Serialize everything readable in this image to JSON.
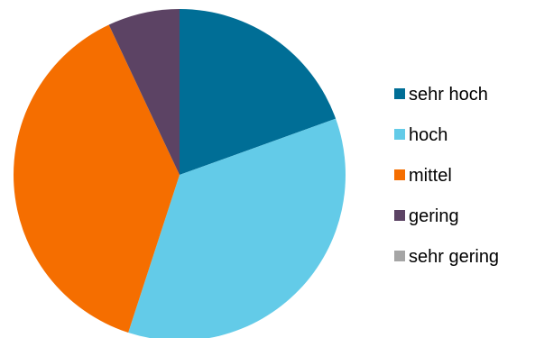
{
  "chart_data": {
    "type": "pie",
    "title": "",
    "slices": [
      {
        "label": "sehr hoch",
        "value": 19.5,
        "color": "#006e96"
      },
      {
        "label": "hoch",
        "value": 35.5,
        "color": "#63cbe8"
      },
      {
        "label": "mittel",
        "value": 38.0,
        "color": "#f56e00"
      },
      {
        "label": "gering",
        "value": 7.0,
        "color": "#5c4364"
      },
      {
        "label": "sehr gering",
        "value": 0,
        "color": "#a5a5a5"
      }
    ],
    "legend_position": "right",
    "start_angle": "12 o'clock",
    "direction": "clockwise"
  }
}
